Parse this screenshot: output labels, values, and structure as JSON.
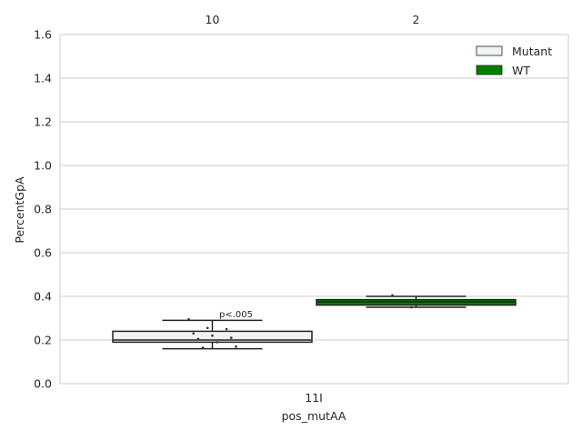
{
  "chart_data": {
    "type": "box",
    "xlabel": "pos_mutAA",
    "ylabel": "PercentGpA",
    "ylim": [
      0,
      1.6
    ],
    "yticks": [
      0.0,
      0.2,
      0.4,
      0.6,
      0.8,
      1.0,
      1.2,
      1.4,
      1.6
    ],
    "ytick_labels": [
      "0.0",
      "0.2",
      "0.4",
      "0.6",
      "0.8",
      "1.0",
      "1.2",
      "1.4",
      "1.6"
    ],
    "grid": true,
    "categories": [
      "11I"
    ],
    "legend": {
      "position": "top-right",
      "entries": [
        "Mutant",
        "WT"
      ]
    },
    "series": [
      {
        "name": "Mutant",
        "color": "#eef4ee",
        "count_label": "10",
        "box": {
          "q1": 0.19,
          "median": 0.2,
          "q3": 0.24,
          "whisker_low": 0.16,
          "whisker_high": 0.29
        },
        "points": [
          0.295,
          0.255,
          0.25,
          0.23,
          0.22,
          0.21,
          0.205,
          0.19,
          0.17,
          0.165
        ]
      },
      {
        "name": "WT",
        "color": "#008000",
        "count_label": "2",
        "box": {
          "q1": 0.36,
          "median": 0.375,
          "q3": 0.385,
          "whisker_low": 0.35,
          "whisker_high": 0.4
        },
        "points": [
          0.405,
          0.35
        ]
      }
    ],
    "annotations": [
      {
        "text": "p<.005",
        "x_category": "11I",
        "y": 0.33
      }
    ]
  }
}
